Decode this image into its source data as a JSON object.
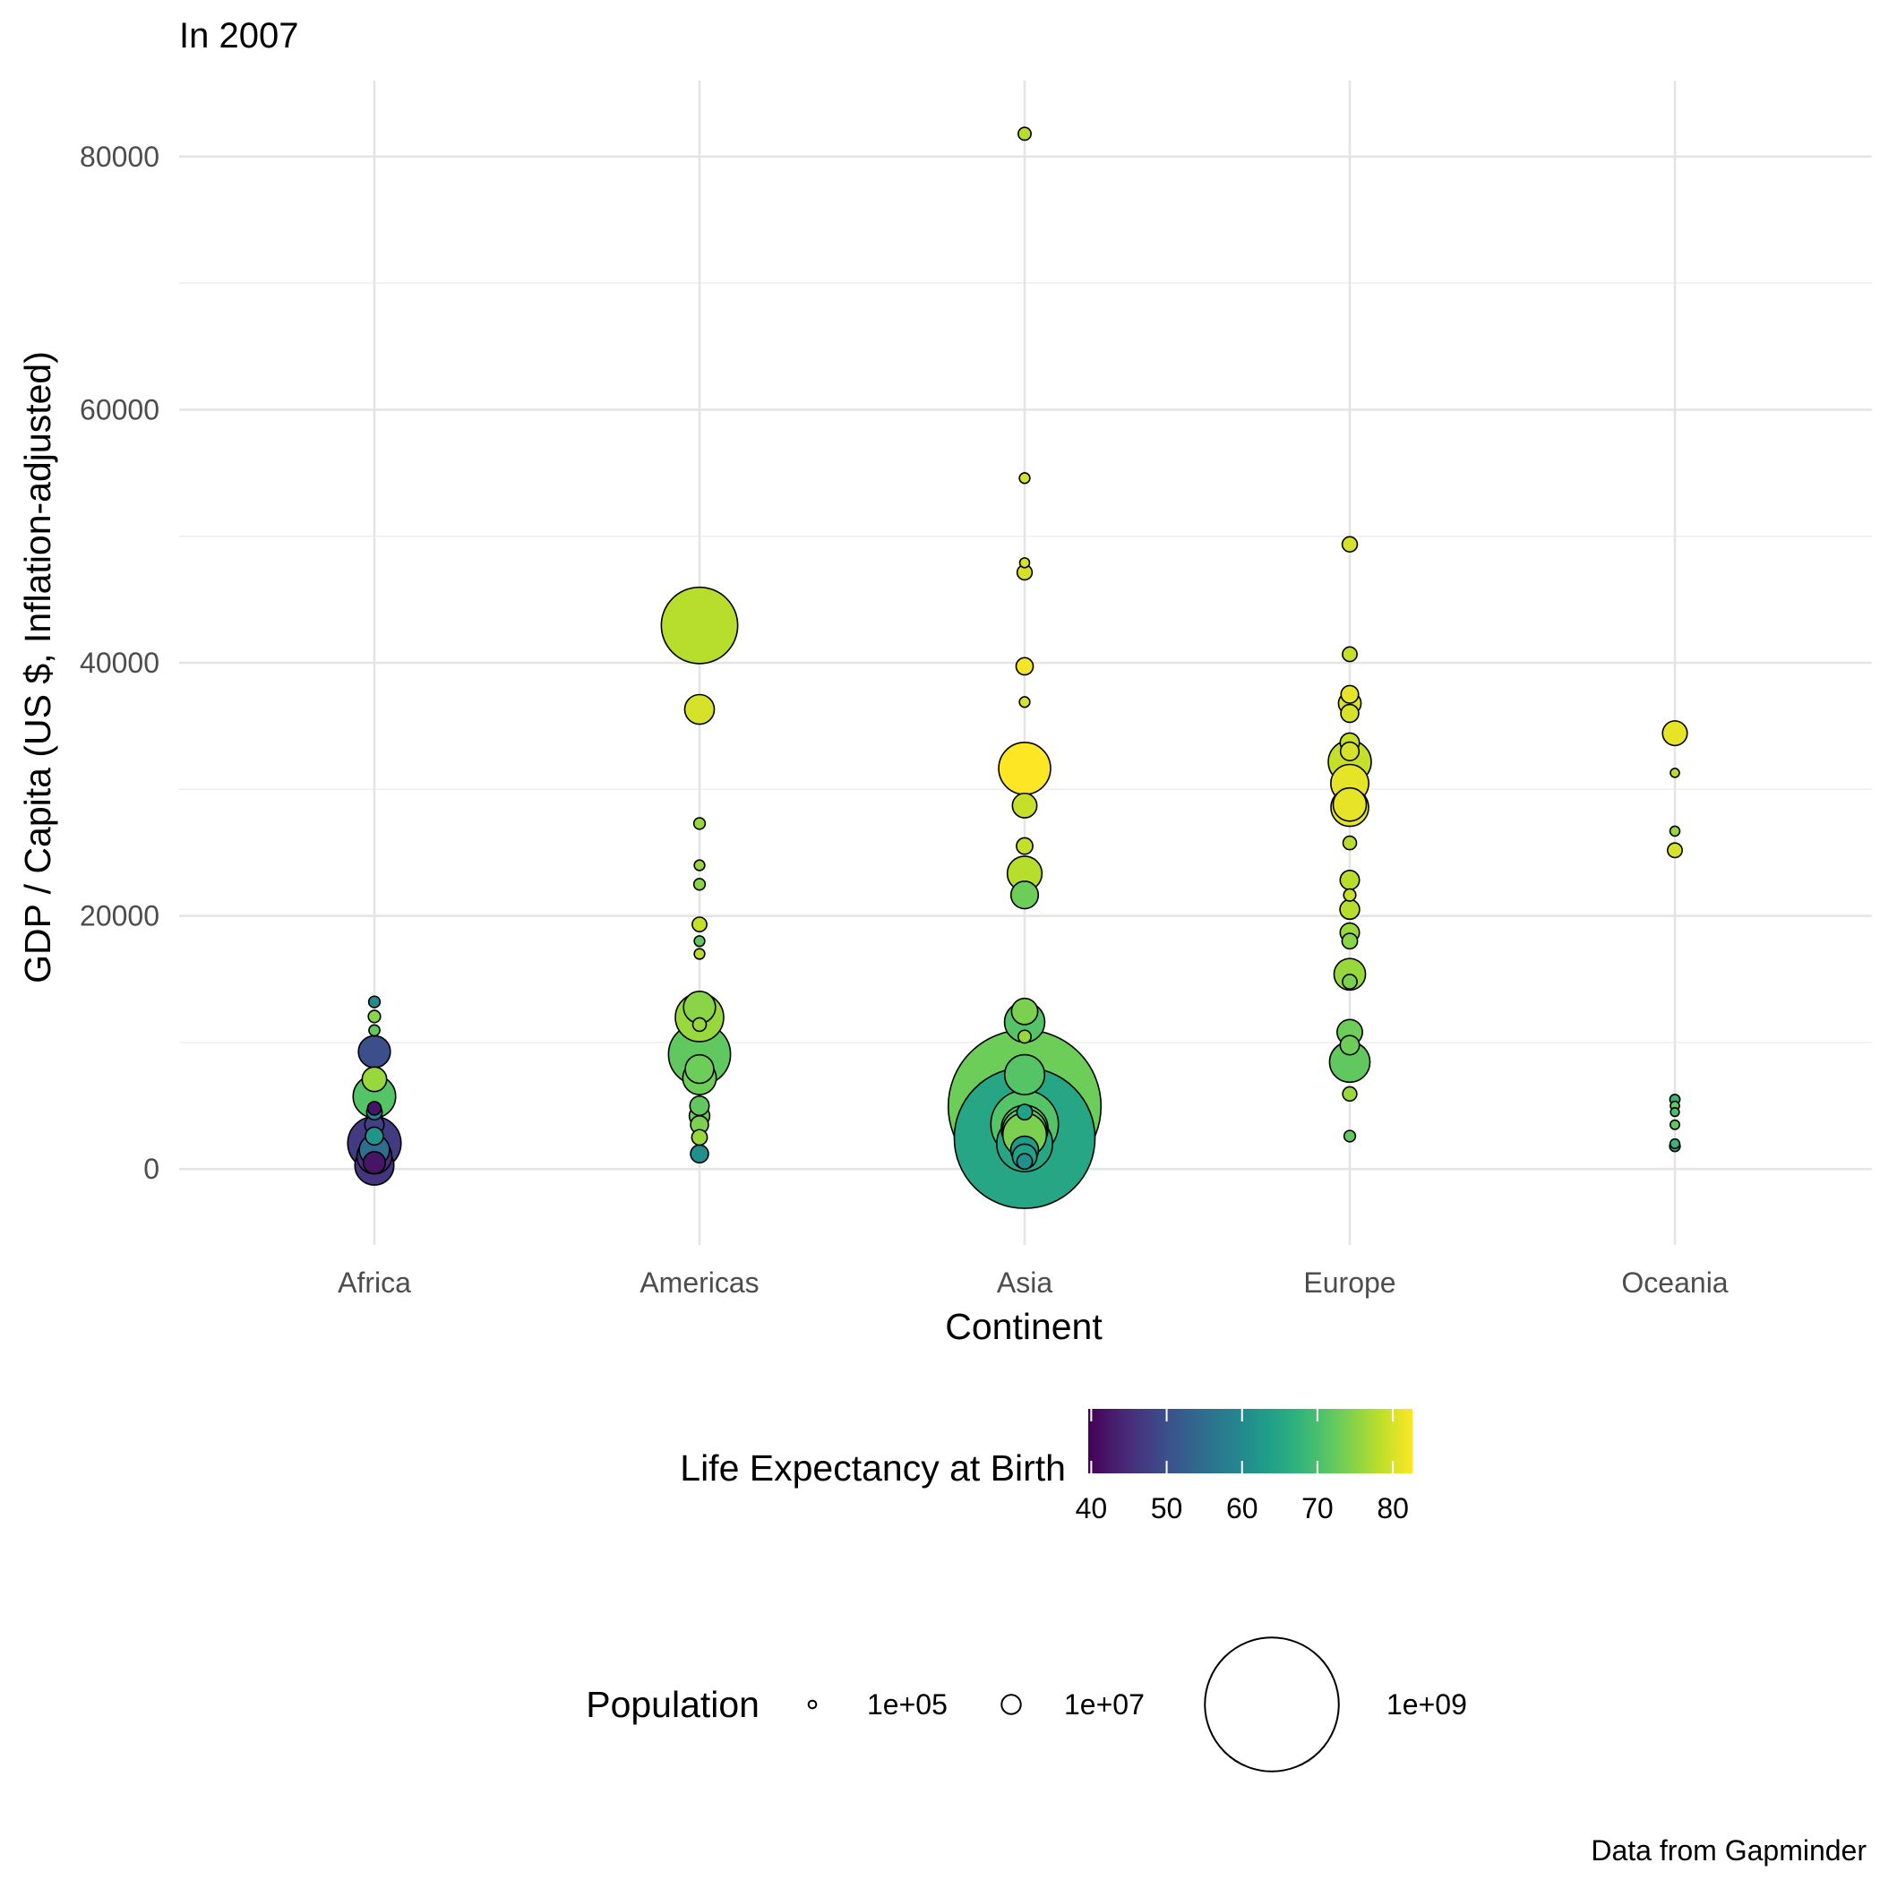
{
  "chart_data": {
    "type": "scatter",
    "title": "In 2007",
    "caption": "Data from Gapminder",
    "xlabel": "Continent",
    "ylabel": "GDP / Capita (US $, Inflation-adjusted)",
    "categories": [
      "Africa",
      "Americas",
      "Asia",
      "Europe",
      "Oceania"
    ],
    "ylim": [
      -6000,
      86000
    ],
    "yticks": [
      0,
      20000,
      40000,
      60000,
      80000
    ],
    "ytick_labels": [
      "0",
      "20000",
      "40000",
      "60000",
      "80000"
    ],
    "grid": true,
    "point_style": {
      "stroke": "#000000",
      "stroke_width": 1.6
    },
    "points": [
      {
        "x": "Africa",
        "y": 13206,
        "life": 60,
        "pop": 1500000
      },
      {
        "x": "Africa",
        "y": 12057,
        "life": 75,
        "pop": 2000000
      },
      {
        "x": "Africa",
        "y": 10957,
        "life": 72,
        "pop": 1200000
      },
      {
        "x": "Africa",
        "y": 9270,
        "life": 50,
        "pop": 40000000
      },
      {
        "x": "Africa",
        "y": 7093,
        "life": 76,
        "pop": 20000000
      },
      {
        "x": "Africa",
        "y": 5728,
        "life": 71,
        "pop": 80000000
      },
      {
        "x": "Africa",
        "y": 4797,
        "life": 42,
        "pop": 3000000
      },
      {
        "x": "Africa",
        "y": 4500,
        "life": 58,
        "pop": 5000000
      },
      {
        "x": "Africa",
        "y": 3500,
        "life": 48,
        "pop": 10000000
      },
      {
        "x": "Africa",
        "y": 2602,
        "life": 62,
        "pop": 8000000
      },
      {
        "x": "Africa",
        "y": 2042,
        "life": 47,
        "pop": 135000000
      },
      {
        "x": "Africa",
        "y": 1500,
        "life": 55,
        "pop": 35000000
      },
      {
        "x": "Africa",
        "y": 1000,
        "life": 45,
        "pop": 50000000
      },
      {
        "x": "Africa",
        "y": 500,
        "life": 42,
        "pop": 15000000
      },
      {
        "x": "Africa",
        "y": 277,
        "life": 46,
        "pop": 65000000
      },
      {
        "x": "Americas",
        "y": 42952,
        "life": 78,
        "pop": 301000000
      },
      {
        "x": "Americas",
        "y": 36319,
        "life": 80,
        "pop": 33000000
      },
      {
        "x": "Americas",
        "y": 27300,
        "life": 76,
        "pop": 1500000
      },
      {
        "x": "Americas",
        "y": 24000,
        "life": 76,
        "pop": 1000000
      },
      {
        "x": "Americas",
        "y": 22500,
        "life": 75,
        "pop": 1500000
      },
      {
        "x": "Americas",
        "y": 19329,
        "life": 79,
        "pop": 4000000
      },
      {
        "x": "Americas",
        "y": 18008,
        "life": 72,
        "pop": 1000000
      },
      {
        "x": "Americas",
        "y": 17000,
        "life": 78,
        "pop": 1000000
      },
      {
        "x": "Americas",
        "y": 12779,
        "life": 75,
        "pop": 40000000
      },
      {
        "x": "Americas",
        "y": 11977,
        "life": 76,
        "pop": 108000000
      },
      {
        "x": "Americas",
        "y": 11416,
        "life": 76,
        "pop": 3000000
      },
      {
        "x": "Americas",
        "y": 9065,
        "life": 72,
        "pop": 190000000
      },
      {
        "x": "Americas",
        "y": 7900,
        "life": 73,
        "pop": 30000000
      },
      {
        "x": "Americas",
        "y": 7200,
        "life": 73,
        "pop": 45000000
      },
      {
        "x": "Americas",
        "y": 5000,
        "life": 72,
        "pop": 10000000
      },
      {
        "x": "Americas",
        "y": 4200,
        "life": 73,
        "pop": 12000000
      },
      {
        "x": "Americas",
        "y": 3500,
        "life": 74,
        "pop": 8000000
      },
      {
        "x": "Americas",
        "y": 2500,
        "life": 76,
        "pop": 5000000
      },
      {
        "x": "Americas",
        "y": 1202,
        "life": 61,
        "pop": 8000000
      },
      {
        "x": "Asia",
        "y": 81802,
        "life": 78,
        "pop": 2500000
      },
      {
        "x": "Asia",
        "y": 54590,
        "life": 80,
        "pop": 1000000
      },
      {
        "x": "Asia",
        "y": 47900,
        "life": 80,
        "pop": 700000
      },
      {
        "x": "Asia",
        "y": 47143,
        "life": 80,
        "pop": 4500000
      },
      {
        "x": "Asia",
        "y": 39725,
        "life": 82,
        "pop": 7000000
      },
      {
        "x": "Asia",
        "y": 36900,
        "life": 80,
        "pop": 1000000
      },
      {
        "x": "Asia",
        "y": 31656,
        "life": 83,
        "pop": 127000000
      },
      {
        "x": "Asia",
        "y": 28718,
        "life": 79,
        "pop": 20000000
      },
      {
        "x": "Asia",
        "y": 25523,
        "life": 79,
        "pop": 6000000
      },
      {
        "x": "Asia",
        "y": 23348,
        "life": 78,
        "pop": 49000000
      },
      {
        "x": "Asia",
        "y": 21655,
        "life": 73,
        "pop": 27000000
      },
      {
        "x": "Asia",
        "y": 12451,
        "life": 74,
        "pop": 24000000
      },
      {
        "x": "Asia",
        "y": 11606,
        "life": 71,
        "pop": 70000000
      },
      {
        "x": "Asia",
        "y": 10461,
        "life": 76,
        "pop": 2500000
      },
      {
        "x": "Asia",
        "y": 7458,
        "life": 71,
        "pop": 69000000
      },
      {
        "x": "Asia",
        "y": 4959,
        "life": 73,
        "pop": 1318000000
      },
      {
        "x": "Asia",
        "y": 4500,
        "life": 64,
        "pop": 5000000
      },
      {
        "x": "Asia",
        "y": 3540,
        "life": 71,
        "pop": 230000000
      },
      {
        "x": "Asia",
        "y": 3190,
        "life": 72,
        "pop": 100000000
      },
      {
        "x": "Asia",
        "y": 3000,
        "life": 72,
        "pop": 90000000
      },
      {
        "x": "Asia",
        "y": 2700,
        "life": 74,
        "pop": 85000000
      },
      {
        "x": "Asia",
        "y": 2452,
        "life": 65,
        "pop": 1110000000
      },
      {
        "x": "Asia",
        "y": 2000,
        "life": 65,
        "pop": 150000000
      },
      {
        "x": "Asia",
        "y": 1500,
        "life": 63,
        "pop": 28000000
      },
      {
        "x": "Asia",
        "y": 1000,
        "life": 64,
        "pop": 20000000
      },
      {
        "x": "Asia",
        "y": 600,
        "life": 61,
        "pop": 5000000
      },
      {
        "x": "Europe",
        "y": 49357,
        "life": 80,
        "pop": 4600000
      },
      {
        "x": "Europe",
        "y": 40676,
        "life": 79,
        "pop": 4000000
      },
      {
        "x": "Europe",
        "y": 37506,
        "life": 81,
        "pop": 7500000
      },
      {
        "x": "Europe",
        "y": 36797,
        "life": 80,
        "pop": 16000000
      },
      {
        "x": "Europe",
        "y": 36000,
        "life": 80,
        "pop": 8000000
      },
      {
        "x": "Europe",
        "y": 33692,
        "life": 79,
        "pop": 10000000
      },
      {
        "x": "Europe",
        "y": 33000,
        "life": 80,
        "pop": 9000000
      },
      {
        "x": "Europe",
        "y": 32170,
        "life": 79,
        "pop": 82000000
      },
      {
        "x": "Europe",
        "y": 30470,
        "life": 81,
        "pop": 61000000
      },
      {
        "x": "Europe",
        "y": 28570,
        "life": 81,
        "pop": 60000000
      },
      {
        "x": "Europe",
        "y": 28800,
        "life": 81,
        "pop": 44000000
      },
      {
        "x": "Europe",
        "y": 25768,
        "life": 78,
        "pop": 3000000
      },
      {
        "x": "Europe",
        "y": 22833,
        "life": 78,
        "pop": 10000000
      },
      {
        "x": "Europe",
        "y": 21650,
        "life": 79,
        "pop": 2000000
      },
      {
        "x": "Europe",
        "y": 20510,
        "life": 78,
        "pop": 10600000
      },
      {
        "x": "Europe",
        "y": 18678,
        "life": 76,
        "pop": 10000000
      },
      {
        "x": "Europe",
        "y": 18009,
        "life": 75,
        "pop": 5000000
      },
      {
        "x": "Europe",
        "y": 15390,
        "life": 76,
        "pop": 38500000
      },
      {
        "x": "Europe",
        "y": 14800,
        "life": 74,
        "pop": 4000000
      },
      {
        "x": "Europe",
        "y": 10808,
        "life": 73,
        "pop": 22000000
      },
      {
        "x": "Europe",
        "y": 9786,
        "life": 73,
        "pop": 10000000
      },
      {
        "x": "Europe",
        "y": 8458,
        "life": 72,
        "pop": 71000000
      },
      {
        "x": "Europe",
        "y": 5937,
        "life": 76,
        "pop": 3600000
      },
      {
        "x": "Europe",
        "y": 2600,
        "life": 72,
        "pop": 1500000
      },
      {
        "x": "Oceania",
        "y": 34435,
        "life": 81,
        "pop": 20400000
      },
      {
        "x": "Oceania",
        "y": 31300,
        "life": 78,
        "pop": 400000
      },
      {
        "x": "Oceania",
        "y": 26700,
        "life": 76,
        "pop": 700000
      },
      {
        "x": "Oceania",
        "y": 25185,
        "life": 80,
        "pop": 4100000
      },
      {
        "x": "Oceania",
        "y": 5500,
        "life": 68,
        "pop": 800000
      },
      {
        "x": "Oceania",
        "y": 5000,
        "life": 72,
        "pop": 400000
      },
      {
        "x": "Oceania",
        "y": 4500,
        "life": 70,
        "pop": 300000
      },
      {
        "x": "Oceania",
        "y": 3500,
        "life": 72,
        "pop": 500000
      },
      {
        "x": "Oceania",
        "y": 2000,
        "life": 68,
        "pop": 600000
      },
      {
        "x": "Oceania",
        "y": 1800,
        "life": 65,
        "pop": 1000000
      }
    ],
    "color_legend": {
      "title": "Life Expectancy at Birth",
      "ticks": [
        40,
        50,
        60,
        70,
        80
      ],
      "tick_labels": [
        "40",
        "50",
        "60",
        "70",
        "80"
      ],
      "range": [
        39.6,
        82.6
      ],
      "palette": "viridis"
    },
    "size_legend": {
      "title": "Population",
      "breaks": [
        100000,
        10000000,
        1000000000
      ],
      "labels": [
        "1e+05",
        "1e+07",
        "1e+09"
      ]
    }
  }
}
